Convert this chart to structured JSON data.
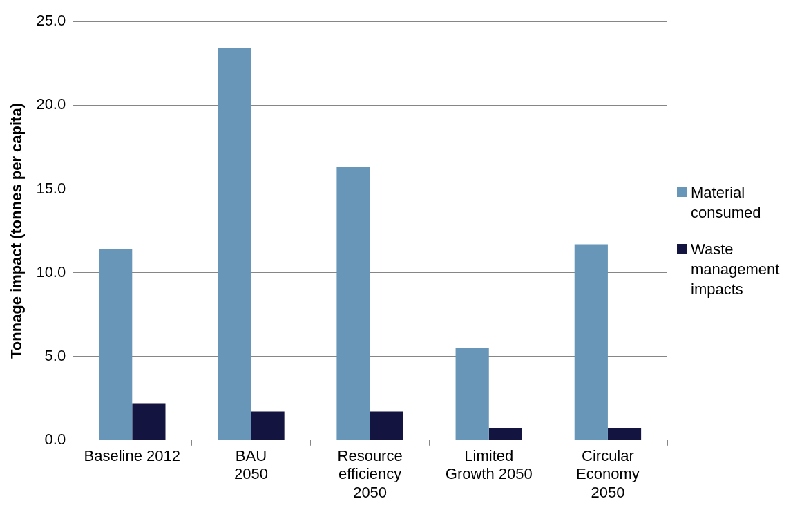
{
  "chart_data": {
    "type": "bar",
    "ylabel": "Tonnage impact (tonnes per capita)",
    "categories": [
      "Baseline 2012",
      "BAU\n2050",
      "Resource\nefficiency\n2050",
      "Limited\nGrowth 2050",
      "Circular\nEconomy\n2050"
    ],
    "series": [
      {
        "name": "Material consumed",
        "color": "#6796b9",
        "values": [
          11.4,
          23.4,
          16.3,
          5.5,
          11.7
        ]
      },
      {
        "name": "Waste management impacts",
        "color": "#13143f",
        "values": [
          2.2,
          1.7,
          1.7,
          0.7,
          0.7
        ]
      }
    ],
    "ylim": [
      0,
      25
    ],
    "yticks": [
      {
        "value": 0,
        "label": "0.0"
      },
      {
        "value": 5,
        "label": "5.0"
      },
      {
        "value": 10,
        "label": "10.0"
      },
      {
        "value": 15,
        "label": "15.0"
      },
      {
        "value": 20,
        "label": "20.0"
      },
      {
        "value": 25,
        "label": "25.0"
      }
    ],
    "grid": "y",
    "legend": "right"
  }
}
